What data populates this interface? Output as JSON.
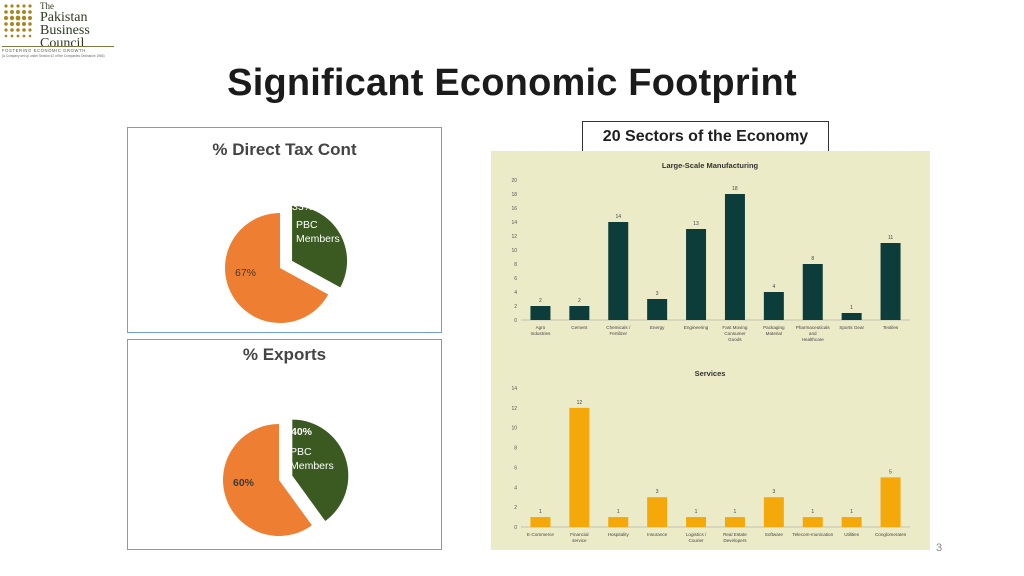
{
  "logo": {
    "line1": "The",
    "line2": "Pakistan",
    "line3": "Business",
    "line4": "Council",
    "tagline": "FOSTERING ECONOMIC GROWTH",
    "subline": "(A Company set up under Section 42 of the Companies Ordinance 1984)"
  },
  "title": "Significant Economic Footprint",
  "tax_panel": {
    "title": "% Direct Tax Cont",
    "pbc_pct": "33%",
    "pbc_label_1": "PBC",
    "pbc_label_2": "Members",
    "other_pct": "67%"
  },
  "exports_panel": {
    "title": "% Exports",
    "pbc_pct": "40%",
    "pbc_label_1": "PBC",
    "pbc_label_2": "Members",
    "other_pct": "60%"
  },
  "sectors_tag": "20 Sectors of the Economy",
  "colors": {
    "green": "#3b5a22",
    "orange": "#ee7f32",
    "teal": "#0d3d3a",
    "amber": "#f5a80a",
    "chart_bg": "#ecebc8"
  },
  "chart_data": [
    {
      "type": "pie",
      "title": "% Direct Tax Cont",
      "slices": [
        {
          "name": "PBC Members",
          "value": 33
        },
        {
          "name": "",
          "value": 67
        }
      ]
    },
    {
      "type": "pie",
      "title": "% Exports",
      "slices": [
        {
          "name": "PBC Members",
          "value": 40
        },
        {
          "name": "",
          "value": 60
        }
      ]
    },
    {
      "type": "bar",
      "title": "Large-Scale Manufacturing",
      "categories": [
        "Agro Industries",
        "Cement",
        "Chemicals / Fertilizer",
        "Energy",
        "Engineering",
        "Fast Moving Consumer Goods",
        "Packaging Material",
        "Pharmaceuticals and Healthcare",
        "Sports Gear",
        "Textiles"
      ],
      "values": [
        2,
        2,
        14,
        3,
        13,
        18,
        4,
        8,
        1,
        11
      ],
      "ylim": [
        0,
        20
      ],
      "yticks": [
        0,
        2,
        4,
        6,
        8,
        10,
        12,
        14,
        16,
        18,
        20
      ]
    },
    {
      "type": "bar",
      "title": "Services",
      "categories": [
        "E-Commerce",
        "Financial service",
        "Hospitality",
        "Insurance",
        "Logistics / Courier",
        "Real Estate Developers",
        "Software",
        "Telecom-munication",
        "Utilities",
        "Conglomerates"
      ],
      "values": [
        1,
        12,
        1,
        3,
        1,
        1,
        3,
        1,
        1,
        5
      ],
      "ylim": [
        0,
        14
      ],
      "yticks": [
        0,
        2,
        4,
        6,
        8,
        10,
        12,
        14
      ]
    }
  ],
  "page_number": "3"
}
